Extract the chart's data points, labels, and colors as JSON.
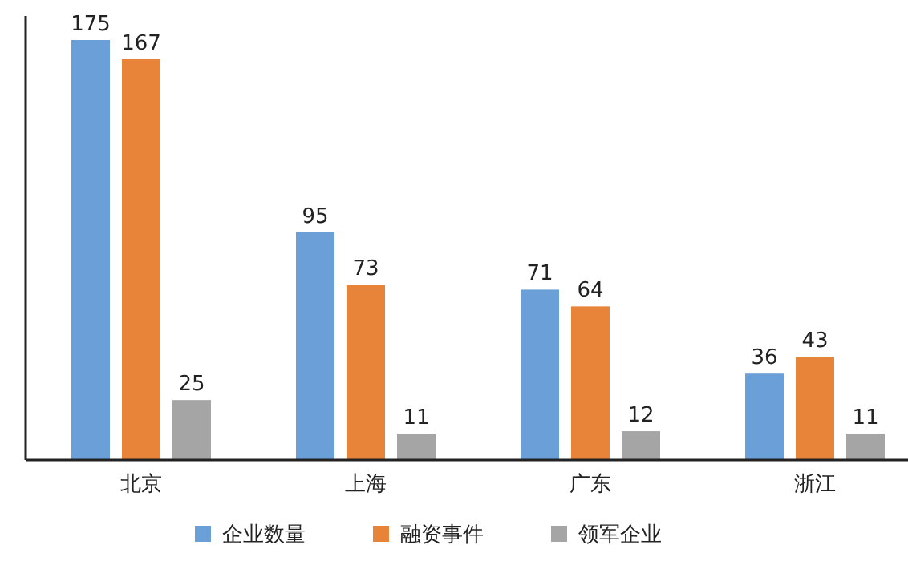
{
  "chart_data": {
    "type": "bar",
    "categories": [
      "北京",
      "上海",
      "广东",
      "浙江"
    ],
    "series": [
      {
        "name": "企业数量",
        "color": "#6a9fd8",
        "values": [
          175,
          95,
          71,
          36
        ]
      },
      {
        "name": "融资事件",
        "color": "#e8833a",
        "values": [
          167,
          73,
          64,
          43
        ]
      },
      {
        "name": "领军企业",
        "color": "#a5a5a5",
        "values": [
          25,
          11,
          12,
          11
        ]
      }
    ],
    "data_labels": true,
    "legend": "bottom"
  }
}
